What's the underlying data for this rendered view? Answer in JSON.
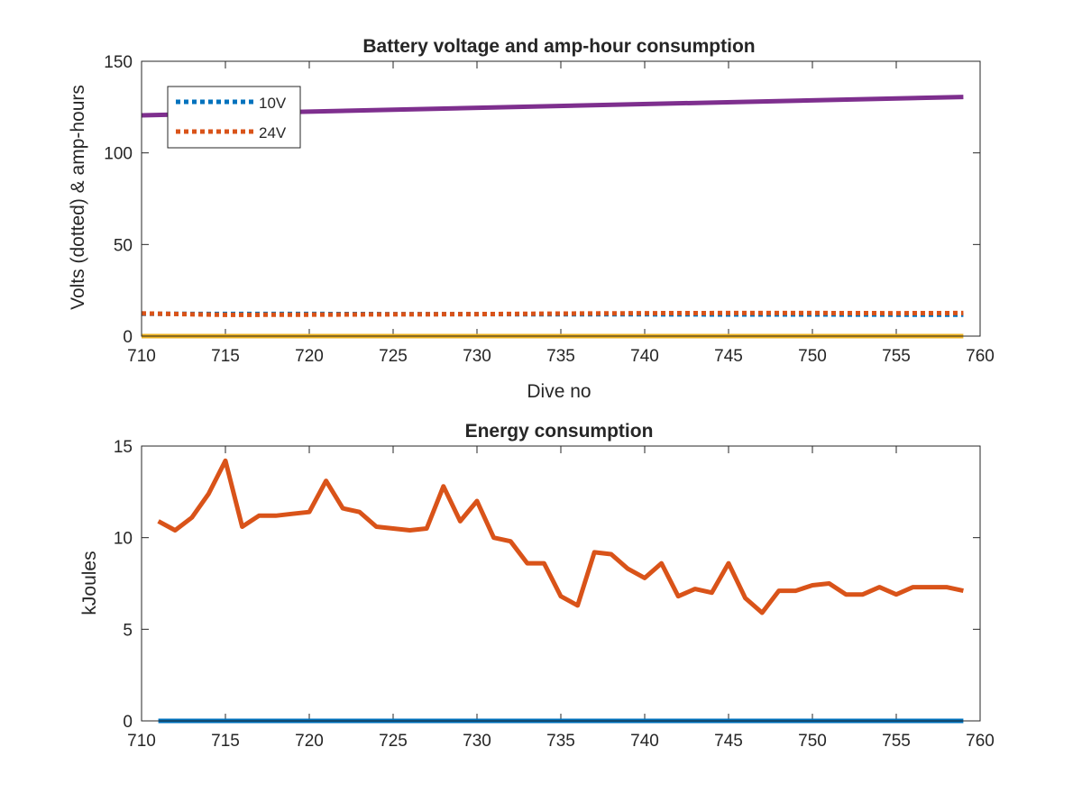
{
  "chart_data": [
    {
      "type": "line",
      "title": "Battery voltage and amp-hour consumption",
      "xlabel": "Dive no",
      "ylabel": "Volts (dotted) & amp-hours",
      "xlim": [
        710,
        760
      ],
      "ylim": [
        0,
        150
      ],
      "xticks": [
        "710",
        "715",
        "720",
        "725",
        "730",
        "735",
        "740",
        "745",
        "750",
        "755",
        "760"
      ],
      "yticks": [
        "0",
        "50",
        "100",
        "150"
      ],
      "grid": false,
      "legend_position": "top-left",
      "series": [
        {
          "name": "10V",
          "style": "dotted",
          "color": "#0072BD",
          "x": [
            710,
            715,
            720,
            725,
            730,
            735,
            740,
            745,
            750,
            755,
            759
          ],
          "y": [
            12.2,
            12.1,
            12.1,
            12.0,
            12.0,
            11.9,
            11.9,
            11.8,
            11.8,
            11.7,
            11.7
          ]
        },
        {
          "name": "24V",
          "style": "dotted",
          "color": "#D95319",
          "x": [
            710,
            715,
            720,
            725,
            730,
            735,
            740,
            745,
            750,
            755,
            759
          ],
          "y": [
            12.4,
            11.6,
            11.7,
            11.9,
            12.0,
            12.3,
            12.5,
            12.6,
            12.6,
            12.5,
            12.6
          ]
        },
        {
          "style": "solid",
          "color": "#7E2F8E",
          "x": [
            710,
            759
          ],
          "y": [
            120.5,
            130.5
          ]
        },
        {
          "style": "solid",
          "color": "#EDB120",
          "x": [
            710,
            759
          ],
          "y": [
            0,
            0
          ]
        }
      ]
    },
    {
      "type": "line",
      "title": "Energy consumption",
      "xlabel": "",
      "ylabel": "kJoules",
      "xlim": [
        710,
        760
      ],
      "ylim": [
        0,
        15
      ],
      "xticks": [
        "710",
        "715",
        "720",
        "725",
        "730",
        "735",
        "740",
        "745",
        "750",
        "755",
        "760"
      ],
      "yticks": [
        "0",
        "5",
        "10",
        "15"
      ],
      "grid": false,
      "series": [
        {
          "style": "solid",
          "color": "#D95319",
          "x": [
            711,
            712,
            713,
            714,
            715,
            716,
            717,
            718,
            719,
            720,
            721,
            722,
            723,
            724,
            725,
            726,
            727,
            728,
            729,
            730,
            731,
            732,
            733,
            734,
            735,
            736,
            737,
            738,
            739,
            740,
            741,
            742,
            743,
            744,
            745,
            746,
            747,
            748,
            749,
            750,
            751,
            752,
            753,
            754,
            755,
            756,
            757,
            758,
            759
          ],
          "y": [
            10.9,
            10.4,
            11.1,
            12.4,
            14.2,
            10.6,
            11.2,
            11.2,
            11.3,
            11.4,
            13.1,
            11.6,
            11.4,
            10.6,
            10.5,
            10.4,
            10.5,
            12.8,
            10.9,
            12.0,
            10.0,
            9.8,
            8.6,
            8.6,
            6.8,
            6.3,
            9.2,
            9.1,
            8.3,
            7.8,
            8.6,
            6.8,
            7.2,
            7.0,
            8.6,
            6.7,
            5.9,
            7.1,
            7.1,
            7.4,
            7.5,
            6.9,
            6.9,
            7.3,
            6.9,
            7.3,
            7.3,
            7.3,
            7.1
          ]
        },
        {
          "style": "solid",
          "color": "#0072BD",
          "x": [
            711,
            759
          ],
          "y": [
            0,
            0
          ]
        }
      ]
    }
  ]
}
